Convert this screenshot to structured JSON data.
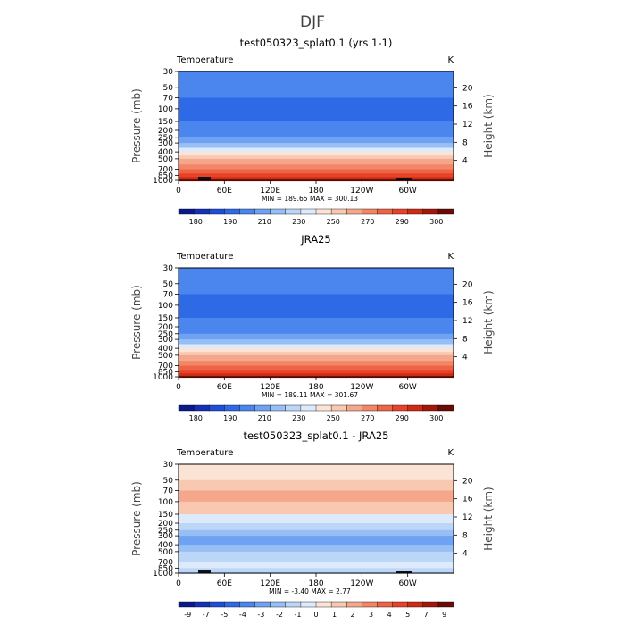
{
  "page_title": "DJF",
  "chart_data": [
    {
      "type": "heatmap",
      "title": "test050323_splat0.1 (yrs 1-1)",
      "field_label": "Temperature",
      "units": "K",
      "ylabel": "Pressure (mb)",
      "ylabel_right": "Height (km)",
      "x_ticks": [
        "0",
        "60E",
        "120E",
        "180",
        "120W",
        "60W"
      ],
      "y_ticks": [
        "30",
        "50",
        "70",
        "100",
        "150",
        "200",
        "250",
        "300",
        "400",
        "500",
        "700",
        "850",
        "1000"
      ],
      "height_ticks": [
        "20",
        "16",
        "12",
        "8",
        "4"
      ],
      "stats": "MIN = 189.65   MAX = 300.13",
      "min": 189.65,
      "max": 300.13,
      "colorbar_labels": [
        "180",
        "190",
        "210",
        "230",
        "250",
        "270",
        "290",
        "300"
      ],
      "colors": [
        "#0a1a8c",
        "#1530b8",
        "#1f4fd8",
        "#2f6ae6",
        "#4a86ee",
        "#6fa2f2",
        "#97bff5",
        "#bcd6f8",
        "#ddeafb",
        "#fbe4d6",
        "#f8c9b0",
        "#f5a78b",
        "#f28666",
        "#ee6446",
        "#e84328",
        "#cf2a12",
        "#a3170a",
        "#6a0c05"
      ],
      "profile": [
        {
          "p": 30,
          "c": 4
        },
        {
          "p": 50,
          "c": 4
        },
        {
          "p": 70,
          "c": 3
        },
        {
          "p": 100,
          "c": 3
        },
        {
          "p": 150,
          "c": 4
        },
        {
          "p": 200,
          "c": 4
        },
        {
          "p": 250,
          "c": 5
        },
        {
          "p": 300,
          "c": 6
        },
        {
          "p": 350,
          "c": 8
        },
        {
          "p": 400,
          "c": 9
        },
        {
          "p": 450,
          "c": 10
        },
        {
          "p": 500,
          "c": 11
        },
        {
          "p": 600,
          "c": 12
        },
        {
          "p": 700,
          "c": 13
        },
        {
          "p": 800,
          "c": 14
        },
        {
          "p": 900,
          "c": 15
        },
        {
          "p": 1000,
          "c": 16
        }
      ],
      "terrain": true,
      "show_colorbar": true
    },
    {
      "type": "heatmap",
      "title": "JRA25",
      "field_label": "Temperature",
      "units": "K",
      "ylabel": "Pressure (mb)",
      "ylabel_right": "Height (km)",
      "x_ticks": [
        "0",
        "60E",
        "120E",
        "180",
        "120W",
        "60W"
      ],
      "y_ticks": [
        "30",
        "50",
        "70",
        "100",
        "150",
        "200",
        "250",
        "300",
        "400",
        "500",
        "700",
        "850",
        "1000"
      ],
      "height_ticks": [
        "20",
        "16",
        "12",
        "8",
        "4"
      ],
      "stats": "MIN = 189.11   MAX = 301.67",
      "min": 189.11,
      "max": 301.67,
      "colorbar_labels": [
        "180",
        "190",
        "210",
        "230",
        "250",
        "270",
        "290",
        "300"
      ],
      "colors": [
        "#0a1a8c",
        "#1530b8",
        "#1f4fd8",
        "#2f6ae6",
        "#4a86ee",
        "#6fa2f2",
        "#97bff5",
        "#bcd6f8",
        "#ddeafb",
        "#fbe4d6",
        "#f8c9b0",
        "#f5a78b",
        "#f28666",
        "#ee6446",
        "#e84328",
        "#cf2a12",
        "#a3170a",
        "#6a0c05"
      ],
      "profile": [
        {
          "p": 30,
          "c": 4
        },
        {
          "p": 50,
          "c": 4
        },
        {
          "p": 70,
          "c": 3
        },
        {
          "p": 100,
          "c": 3
        },
        {
          "p": 150,
          "c": 4
        },
        {
          "p": 200,
          "c": 4
        },
        {
          "p": 250,
          "c": 5
        },
        {
          "p": 300,
          "c": 6
        },
        {
          "p": 350,
          "c": 8
        },
        {
          "p": 400,
          "c": 9
        },
        {
          "p": 450,
          "c": 10
        },
        {
          "p": 500,
          "c": 11
        },
        {
          "p": 600,
          "c": 12
        },
        {
          "p": 700,
          "c": 13
        },
        {
          "p": 800,
          "c": 14
        },
        {
          "p": 900,
          "c": 15
        },
        {
          "p": 1000,
          "c": 16
        }
      ],
      "terrain": false,
      "show_colorbar": true
    },
    {
      "type": "heatmap",
      "title": "test050323_splat0.1 - JRA25",
      "field_label": "Temperature",
      "units": "K",
      "ylabel": "Pressure (mb)",
      "ylabel_right": "Height (km)",
      "x_ticks": [
        "0",
        "60E",
        "120E",
        "180",
        "120W",
        "60W"
      ],
      "y_ticks": [
        "30",
        "50",
        "70",
        "100",
        "150",
        "200",
        "250",
        "300",
        "400",
        "500",
        "700",
        "850",
        "1000"
      ],
      "height_ticks": [
        "20",
        "16",
        "12",
        "8",
        "4"
      ],
      "stats": "MIN = -3.40   MAX = 2.77",
      "min": -3.4,
      "max": 2.77,
      "colorbar_labels": [
        "-9",
        "-7",
        "-5",
        "-4",
        "-3",
        "-2",
        "-1",
        "0",
        "1",
        "2",
        "3",
        "4",
        "5",
        "7",
        "9"
      ],
      "colors": [
        "#0a1a8c",
        "#1530b8",
        "#1f4fd8",
        "#2f6ae6",
        "#4a86ee",
        "#6fa2f2",
        "#97bff5",
        "#bcd6f8",
        "#ddeafb",
        "#fbe4d6",
        "#f8c9b0",
        "#f5a78b",
        "#f28666",
        "#ee6446",
        "#e84328",
        "#cf2a12",
        "#a3170a",
        "#6a0c05"
      ],
      "profile": [
        {
          "p": 30,
          "c": 9
        },
        {
          "p": 50,
          "c": 10
        },
        {
          "p": 70,
          "c": 11
        },
        {
          "p": 100,
          "c": 10
        },
        {
          "p": 150,
          "c": 8
        },
        {
          "p": 200,
          "c": 7
        },
        {
          "p": 250,
          "c": 6
        },
        {
          "p": 300,
          "c": 5
        },
        {
          "p": 400,
          "c": 6
        },
        {
          "p": 500,
          "c": 7
        },
        {
          "p": 700,
          "c": 8
        },
        {
          "p": 850,
          "c": 7
        },
        {
          "p": 1000,
          "c": 8
        }
      ],
      "terrain": true,
      "show_colorbar": true
    }
  ]
}
